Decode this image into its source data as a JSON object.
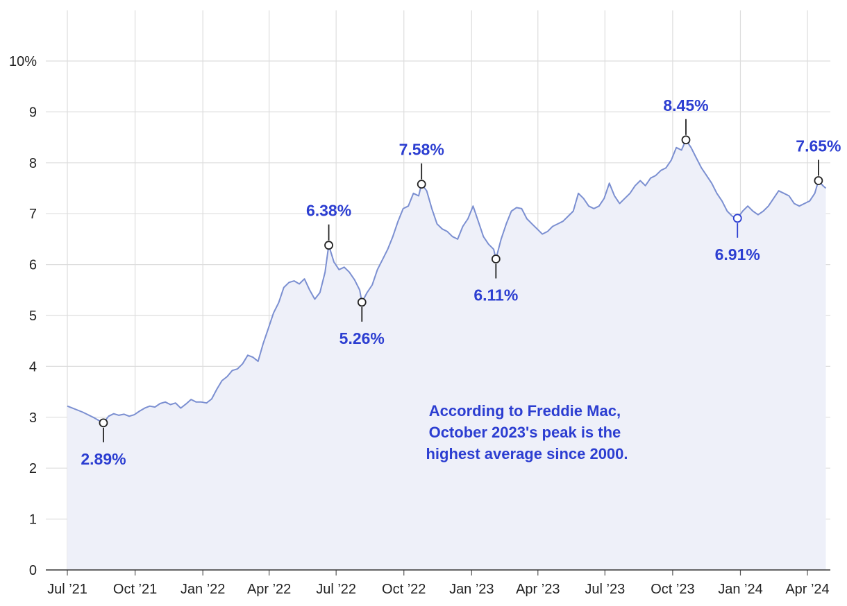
{
  "chart_data": {
    "type": "area",
    "title": "",
    "xlabel": "",
    "ylabel": "",
    "ylim": [
      0,
      10
    ],
    "y_ticks": [
      0,
      1,
      2,
      3,
      4,
      5,
      6,
      7,
      8,
      9,
      10
    ],
    "y_tick_labels": [
      "0",
      "1",
      "2",
      "3",
      "4",
      "5",
      "6",
      "7",
      "8",
      "9",
      "10%"
    ],
    "x_tick_labels": [
      "Jul ’21",
      "Oct ’21",
      "Jan ’22",
      "Apr ’22",
      "Jul ’22",
      "Oct ’22",
      "Jan ’23",
      "Apr ’23",
      "Jul ’23",
      "Oct ’23",
      "Jan ’24",
      "Apr ’24"
    ],
    "x_tick_dates": [
      "2021-07-01",
      "2021-10-01",
      "2022-01-01",
      "2022-04-01",
      "2022-07-01",
      "2022-10-01",
      "2023-01-01",
      "2023-04-01",
      "2023-07-01",
      "2023-10-01",
      "2024-01-01",
      "2024-04-01"
    ],
    "xlim": [
      "2021-06-30",
      "2024-05-01"
    ],
    "grid": true,
    "colors": {
      "line": "#7b8fd1",
      "fill": "#eef0f9",
      "accent": "#2c3ed1",
      "grid": "#dddddd",
      "marker": "#222222"
    },
    "series": [
      {
        "points": [
          [
            "2021-07-01",
            3.22
          ],
          [
            "2021-07-08",
            3.18
          ],
          [
            "2021-07-15",
            3.14
          ],
          [
            "2021-07-22",
            3.1
          ],
          [
            "2021-07-29",
            3.05
          ],
          [
            "2021-08-05",
            3.0
          ],
          [
            "2021-08-10",
            2.96
          ],
          [
            "2021-08-15",
            2.92
          ],
          [
            "2021-08-19",
            2.89
          ],
          [
            "2021-08-26",
            3.02
          ],
          [
            "2021-09-02",
            3.07
          ],
          [
            "2021-09-09",
            3.04
          ],
          [
            "2021-09-16",
            3.06
          ],
          [
            "2021-09-23",
            3.02
          ],
          [
            "2021-09-30",
            3.05
          ],
          [
            "2021-10-07",
            3.12
          ],
          [
            "2021-10-14",
            3.18
          ],
          [
            "2021-10-21",
            3.22
          ],
          [
            "2021-10-28",
            3.2
          ],
          [
            "2021-11-04",
            3.27
          ],
          [
            "2021-11-11",
            3.3
          ],
          [
            "2021-11-18",
            3.25
          ],
          [
            "2021-11-25",
            3.28
          ],
          [
            "2021-12-02",
            3.18
          ],
          [
            "2021-12-09",
            3.26
          ],
          [
            "2021-12-16",
            3.35
          ],
          [
            "2021-12-23",
            3.3
          ],
          [
            "2021-12-30",
            3.3
          ],
          [
            "2022-01-06",
            3.28
          ],
          [
            "2022-01-13",
            3.36
          ],
          [
            "2022-01-20",
            3.55
          ],
          [
            "2022-01-27",
            3.72
          ],
          [
            "2022-02-03",
            3.8
          ],
          [
            "2022-02-10",
            3.92
          ],
          [
            "2022-02-17",
            3.95
          ],
          [
            "2022-02-24",
            4.05
          ],
          [
            "2022-03-03",
            4.22
          ],
          [
            "2022-03-10",
            4.18
          ],
          [
            "2022-03-17",
            4.1
          ],
          [
            "2022-03-24",
            4.45
          ],
          [
            "2022-03-31",
            4.75
          ],
          [
            "2022-04-07",
            5.05
          ],
          [
            "2022-04-14",
            5.25
          ],
          [
            "2022-04-21",
            5.55
          ],
          [
            "2022-04-28",
            5.65
          ],
          [
            "2022-05-05",
            5.68
          ],
          [
            "2022-05-12",
            5.62
          ],
          [
            "2022-05-19",
            5.72
          ],
          [
            "2022-05-26",
            5.5
          ],
          [
            "2022-06-02",
            5.32
          ],
          [
            "2022-06-09",
            5.45
          ],
          [
            "2022-06-16",
            5.85
          ],
          [
            "2022-06-21",
            6.38
          ],
          [
            "2022-06-28",
            6.05
          ],
          [
            "2022-07-05",
            5.9
          ],
          [
            "2022-07-12",
            5.95
          ],
          [
            "2022-07-19",
            5.85
          ],
          [
            "2022-07-26",
            5.7
          ],
          [
            "2022-08-02",
            5.5
          ],
          [
            "2022-08-05",
            5.26
          ],
          [
            "2022-08-12",
            5.45
          ],
          [
            "2022-08-19",
            5.6
          ],
          [
            "2022-08-26",
            5.9
          ],
          [
            "2022-09-02",
            6.1
          ],
          [
            "2022-09-09",
            6.3
          ],
          [
            "2022-09-16",
            6.55
          ],
          [
            "2022-09-23",
            6.85
          ],
          [
            "2022-09-30",
            7.1
          ],
          [
            "2022-10-07",
            7.15
          ],
          [
            "2022-10-14",
            7.4
          ],
          [
            "2022-10-21",
            7.35
          ],
          [
            "2022-10-25",
            7.58
          ],
          [
            "2022-11-01",
            7.45
          ],
          [
            "2022-11-08",
            7.1
          ],
          [
            "2022-11-15",
            6.8
          ],
          [
            "2022-11-22",
            6.7
          ],
          [
            "2022-11-29",
            6.65
          ],
          [
            "2022-12-06",
            6.55
          ],
          [
            "2022-12-13",
            6.5
          ],
          [
            "2022-12-20",
            6.75
          ],
          [
            "2022-12-27",
            6.9
          ],
          [
            "2023-01-03",
            7.15
          ],
          [
            "2023-01-10",
            6.85
          ],
          [
            "2023-01-17",
            6.55
          ],
          [
            "2023-01-24",
            6.4
          ],
          [
            "2023-01-31",
            6.3
          ],
          [
            "2023-02-03",
            6.11
          ],
          [
            "2023-02-10",
            6.5
          ],
          [
            "2023-02-17",
            6.8
          ],
          [
            "2023-02-24",
            7.05
          ],
          [
            "2023-03-03",
            7.12
          ],
          [
            "2023-03-10",
            7.1
          ],
          [
            "2023-03-17",
            6.9
          ],
          [
            "2023-03-24",
            6.8
          ],
          [
            "2023-03-31",
            6.7
          ],
          [
            "2023-04-07",
            6.6
          ],
          [
            "2023-04-14",
            6.65
          ],
          [
            "2023-04-21",
            6.75
          ],
          [
            "2023-04-28",
            6.8
          ],
          [
            "2023-05-05",
            6.85
          ],
          [
            "2023-05-12",
            6.95
          ],
          [
            "2023-05-19",
            7.05
          ],
          [
            "2023-05-26",
            7.4
          ],
          [
            "2023-06-02",
            7.3
          ],
          [
            "2023-06-09",
            7.15
          ],
          [
            "2023-06-16",
            7.1
          ],
          [
            "2023-06-23",
            7.15
          ],
          [
            "2023-06-30",
            7.3
          ],
          [
            "2023-07-07",
            7.6
          ],
          [
            "2023-07-14",
            7.35
          ],
          [
            "2023-07-21",
            7.2
          ],
          [
            "2023-07-28",
            7.3
          ],
          [
            "2023-08-04",
            7.4
          ],
          [
            "2023-08-11",
            7.55
          ],
          [
            "2023-08-18",
            7.65
          ],
          [
            "2023-08-25",
            7.55
          ],
          [
            "2023-09-01",
            7.7
          ],
          [
            "2023-09-08",
            7.75
          ],
          [
            "2023-09-15",
            7.85
          ],
          [
            "2023-09-22",
            7.9
          ],
          [
            "2023-09-29",
            8.05
          ],
          [
            "2023-10-06",
            8.3
          ],
          [
            "2023-10-13",
            8.25
          ],
          [
            "2023-10-19",
            8.45
          ],
          [
            "2023-10-26",
            8.3
          ],
          [
            "2023-11-02",
            8.1
          ],
          [
            "2023-11-09",
            7.9
          ],
          [
            "2023-11-16",
            7.75
          ],
          [
            "2023-11-23",
            7.6
          ],
          [
            "2023-11-30",
            7.4
          ],
          [
            "2023-12-07",
            7.25
          ],
          [
            "2023-12-14",
            7.05
          ],
          [
            "2023-12-21",
            6.95
          ],
          [
            "2023-12-28",
            6.91
          ],
          [
            "2024-01-04",
            7.05
          ],
          [
            "2024-01-11",
            7.15
          ],
          [
            "2024-01-18",
            7.05
          ],
          [
            "2024-01-25",
            6.98
          ],
          [
            "2024-02-01",
            7.05
          ],
          [
            "2024-02-08",
            7.15
          ],
          [
            "2024-02-15",
            7.3
          ],
          [
            "2024-02-22",
            7.45
          ],
          [
            "2024-02-29",
            7.4
          ],
          [
            "2024-03-07",
            7.35
          ],
          [
            "2024-03-14",
            7.2
          ],
          [
            "2024-03-21",
            7.15
          ],
          [
            "2024-03-28",
            7.2
          ],
          [
            "2024-04-04",
            7.25
          ],
          [
            "2024-04-11",
            7.4
          ],
          [
            "2024-04-16",
            7.65
          ],
          [
            "2024-04-22",
            7.55
          ],
          [
            "2024-04-26",
            7.5
          ]
        ]
      }
    ],
    "annotations": [
      {
        "date": "2021-08-19",
        "value": 2.89,
        "label": "2.89%",
        "position": "below"
      },
      {
        "date": "2022-06-21",
        "value": 6.38,
        "label": "6.38%",
        "position": "above"
      },
      {
        "date": "2022-08-05",
        "value": 5.26,
        "label": "5.26%",
        "position": "below"
      },
      {
        "date": "2022-10-25",
        "value": 7.58,
        "label": "7.58%",
        "position": "above"
      },
      {
        "date": "2023-02-03",
        "value": 6.11,
        "label": "6.11%",
        "position": "below"
      },
      {
        "date": "2023-10-19",
        "value": 8.45,
        "label": "8.45%",
        "position": "above"
      },
      {
        "date": "2023-12-28",
        "value": 6.91,
        "label": "6.91%",
        "position": "below"
      },
      {
        "date": "2024-04-16",
        "value": 7.65,
        "label": "7.65%",
        "position": "above"
      }
    ],
    "note": [
      "According to Freddie Mac,",
      "October 2023's peak is the",
      "highest average since 2000."
    ]
  }
}
